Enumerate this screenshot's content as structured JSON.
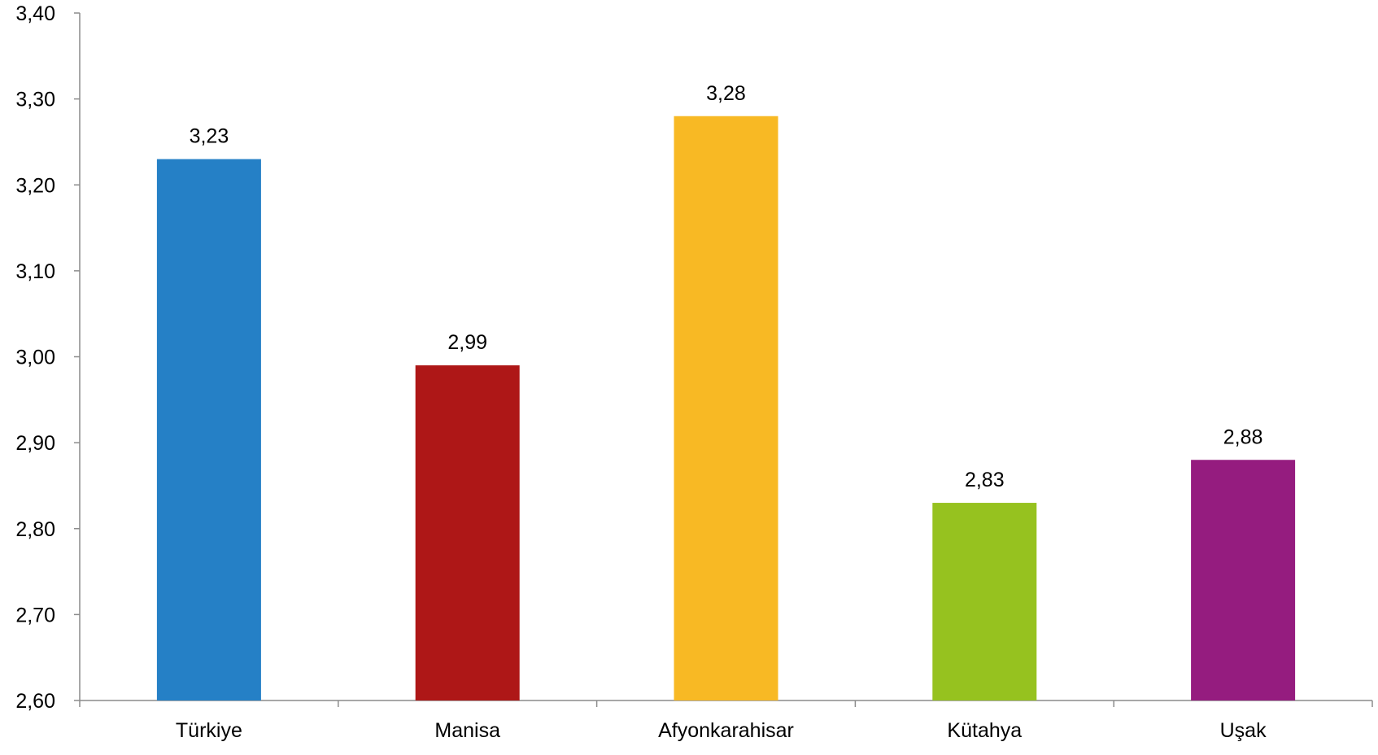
{
  "chart_data": {
    "type": "bar",
    "title": "",
    "xlabel": "",
    "ylabel": "",
    "categories": [
      "Türkiye",
      "Manisa",
      "Afyonkarahisar",
      "Kütahya",
      "Uşak"
    ],
    "values": [
      3.23,
      2.99,
      3.28,
      2.83,
      2.88
    ],
    "value_labels": [
      "3,23",
      "2,99",
      "3,28",
      "2,83",
      "2,88"
    ],
    "colors": [
      "#2580C6",
      "#AE1717",
      "#F8B924",
      "#96C21F",
      "#951C7F"
    ],
    "ylim": [
      2.6,
      3.4
    ],
    "y_ticks": [
      2.6,
      2.7,
      2.8,
      2.9,
      3.0,
      3.1,
      3.2,
      3.3,
      3.4
    ],
    "y_tick_labels": [
      "2,60",
      "2,70",
      "2,80",
      "2,90",
      "3,00",
      "3,10",
      "3,20",
      "3,30",
      "3,40"
    ],
    "grid": false,
    "legend": "none"
  }
}
